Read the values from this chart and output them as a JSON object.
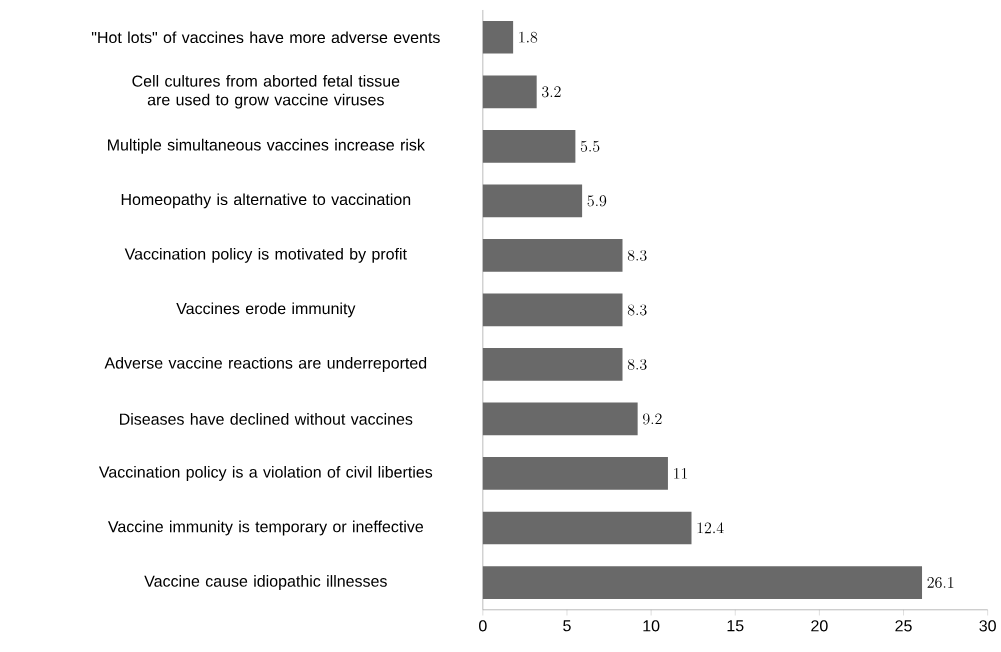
{
  "chart_data": {
    "type": "bar",
    "orientation": "horizontal",
    "categories": [
      "\"Hot lots\" of vaccines have more adverse events",
      "Cell cultures from aborted fetal tissue are used to grow vaccine viruses",
      "Multiple simultaneous vaccines increase risk",
      "Homeopathy is alternative to vaccination",
      "Vaccination policy is motivated by profit",
      "Vaccines erode immunity",
      "Adverse vaccine reactions are underreported",
      "Diseases have declined without vaccines",
      "Vaccination policy is a violation of civil liberties",
      "Vaccine immunity is temporary or ineffective",
      "Vaccine cause idiopathic illnesses"
    ],
    "values": [
      1.8,
      3.2,
      5.5,
      5.9,
      8.3,
      8.3,
      8.3,
      9.2,
      11,
      12.4,
      26.1
    ],
    "color": "#696969",
    "data_labels": true,
    "xlim": [
      0,
      30
    ],
    "xticks": [
      0,
      5,
      10,
      15,
      20,
      25,
      30
    ]
  }
}
